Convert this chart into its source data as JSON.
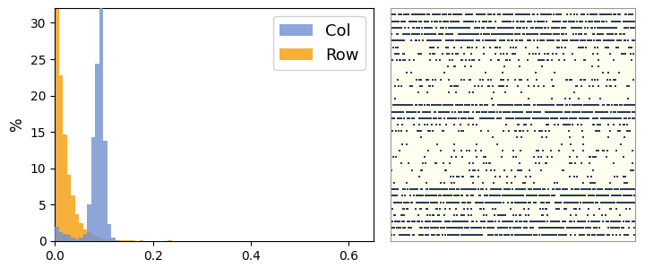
{
  "hist_xlim": [
    0.0,
    0.65
  ],
  "hist_ylim": [
    0.0,
    32
  ],
  "hist_yticks": [
    0,
    5,
    10,
    15,
    20,
    25,
    30
  ],
  "hist_xticks": [
    0.0,
    0.2,
    0.4,
    0.6
  ],
  "ylabel": "%",
  "col_color": "#7090d0",
  "row_color": "#f5a623",
  "col_label": "Col",
  "row_label": "Row",
  "sparse_bg_color": "#fffff0",
  "sparse_dot_color": "#2a3a5a",
  "figure_bg": "#ffffff",
  "legend_fontsize": 13,
  "band_densities": [
    0.55,
    0.55,
    0.18,
    0.04,
    0.18,
    0.04,
    0.6,
    0.18,
    0.04,
    0.1,
    0.1,
    0.1,
    0.6,
    0.18,
    0.55
  ],
  "band_heights": [
    3,
    3,
    3,
    2,
    2,
    2,
    3,
    2,
    2,
    2,
    2,
    2,
    3,
    2,
    3
  ]
}
